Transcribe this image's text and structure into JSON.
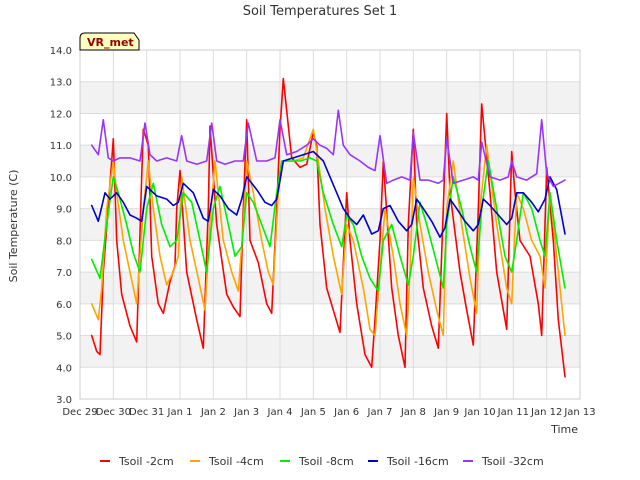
{
  "chart_data": {
    "type": "line",
    "title": "Soil Temperatures Set 1",
    "xlabel": "Time",
    "ylabel": "Soil Temperature (C)",
    "ylim": [
      3.0,
      14.0
    ],
    "xlim": [
      0,
      15
    ],
    "y_ticks": [
      "3.0",
      "4.0",
      "5.0",
      "6.0",
      "7.0",
      "8.0",
      "9.0",
      "10.0",
      "11.0",
      "12.0",
      "13.0",
      "14.0"
    ],
    "x_ticks": [
      {
        "label": "Dec 29",
        "x": 0
      },
      {
        "label": "Dec 30",
        "x": 1
      },
      {
        "label": "Dec 31",
        "x": 2
      },
      {
        "label": "Jan 1",
        "x": 3
      },
      {
        "label": "Jan 2",
        "x": 4
      },
      {
        "label": "Jan 3",
        "x": 5
      },
      {
        "label": "Jan 4",
        "x": 6
      },
      {
        "label": "Jan 5",
        "x": 7
      },
      {
        "label": "Jan 6",
        "x": 8
      },
      {
        "label": "Jan 7",
        "x": 9
      },
      {
        "label": "Jan 8",
        "x": 10
      },
      {
        "label": "Jan 9",
        "x": 11
      },
      {
        "label": "Jan 10",
        "x": 12
      },
      {
        "label": "Jan 11",
        "x": 13
      },
      {
        "label": "Jan 12",
        "x": 14
      },
      {
        "label": "Jan 13",
        "x": 15
      }
    ],
    "grid": true,
    "legend_position": "bottom",
    "annotation": "VR_met",
    "series": [
      {
        "name": "Tsoil -2cm",
        "color": "#ff0000",
        "x": [
          0.35,
          0.5,
          0.6,
          0.7,
          0.95,
          1.0,
          1.1,
          1.25,
          1.5,
          1.7,
          1.85,
          1.9,
          2.05,
          2.15,
          2.35,
          2.5,
          2.7,
          2.85,
          2.9,
          3.0,
          3.2,
          3.5,
          3.7,
          3.85,
          3.9,
          4.1,
          4.4,
          4.6,
          4.8,
          4.9,
          5.0,
          5.1,
          5.35,
          5.6,
          5.75,
          5.9,
          6.0,
          6.1,
          6.35,
          6.6,
          6.8,
          7.0,
          7.1,
          7.2,
          7.4,
          7.6,
          7.8,
          8.0,
          8.1,
          8.3,
          8.55,
          8.75,
          8.85,
          9.0,
          9.1,
          9.35,
          9.55,
          9.75,
          9.85,
          10.0,
          10.1,
          10.3,
          10.55,
          10.75,
          10.9,
          11.0,
          11.1,
          11.4,
          11.6,
          11.8,
          11.95,
          12.05,
          12.3,
          12.5,
          12.8,
          12.95,
          13.05,
          13.2,
          13.5,
          13.75,
          13.85,
          14.0,
          14.2,
          14.35,
          14.55
        ],
        "values": [
          5.0,
          4.5,
          4.4,
          7.0,
          10.5,
          11.2,
          8.0,
          6.3,
          5.3,
          4.8,
          10.0,
          11.5,
          11.0,
          7.5,
          6.0,
          5.7,
          6.7,
          7.2,
          9.0,
          10.2,
          7.0,
          5.5,
          4.6,
          9.0,
          11.6,
          8.5,
          6.3,
          5.9,
          5.6,
          9.0,
          11.8,
          8.0,
          7.3,
          6.0,
          5.7,
          9.0,
          11.5,
          13.1,
          10.6,
          10.3,
          10.4,
          11.4,
          11.0,
          8.5,
          6.5,
          5.8,
          5.1,
          9.5,
          8.0,
          6.0,
          4.4,
          4.0,
          5.5,
          8.0,
          10.5,
          6.5,
          5.0,
          4.0,
          8.5,
          11.5,
          8.5,
          6.5,
          5.3,
          4.6,
          9.0,
          12.0,
          9.5,
          7.0,
          5.8,
          4.7,
          9.0,
          12.3,
          9.5,
          7.0,
          5.2,
          10.8,
          9.5,
          8.0,
          7.5,
          6.0,
          5.0,
          10.3,
          8.0,
          5.5,
          3.7
        ]
      },
      {
        "name": "Tsoil -4cm",
        "color": "#ffa500",
        "x": [
          0.35,
          0.55,
          0.65,
          0.8,
          1.0,
          1.1,
          1.3,
          1.5,
          1.7,
          1.9,
          2.05,
          2.2,
          2.4,
          2.6,
          2.8,
          2.95,
          3.05,
          3.3,
          3.55,
          3.75,
          3.9,
          4.05,
          4.3,
          4.55,
          4.75,
          4.9,
          5.0,
          5.2,
          5.45,
          5.65,
          5.8,
          5.95,
          6.1,
          6.4,
          6.7,
          7.0,
          7.15,
          7.35,
          7.6,
          7.85,
          8.0,
          8.2,
          8.5,
          8.7,
          8.85,
          9.0,
          9.15,
          9.4,
          9.6,
          9.8,
          9.9,
          10.0,
          10.2,
          10.45,
          10.7,
          10.9,
          11.0,
          11.2,
          11.45,
          11.7,
          11.9,
          12.0,
          12.2,
          12.5,
          12.8,
          12.95,
          13.1,
          13.3,
          13.55,
          13.8,
          13.95,
          14.1,
          14.3,
          14.55
        ],
        "values": [
          6.0,
          5.5,
          6.5,
          9.0,
          10.5,
          9.5,
          8.0,
          7.0,
          6.0,
          9.0,
          10.5,
          9.0,
          7.5,
          6.6,
          7.0,
          7.5,
          10.0,
          8.0,
          6.8,
          5.8,
          8.5,
          10.5,
          8.0,
          7.0,
          6.4,
          8.5,
          10.5,
          9.5,
          8.0,
          7.0,
          6.6,
          9.5,
          10.5,
          10.5,
          10.6,
          11.5,
          10.5,
          9.0,
          7.5,
          6.3,
          8.5,
          8.0,
          6.5,
          5.2,
          5.0,
          7.0,
          9.0,
          7.5,
          6.0,
          5.0,
          7.0,
          10.0,
          8.5,
          7.0,
          5.8,
          5.0,
          9.0,
          10.5,
          8.5,
          6.8,
          5.7,
          9.0,
          11.0,
          8.5,
          6.5,
          6.0,
          9.5,
          9.0,
          8.0,
          7.5,
          6.5,
          9.5,
          7.5,
          5.0
        ]
      },
      {
        "name": "Tsoil -8cm",
        "color": "#00ee00",
        "x": [
          0.35,
          0.6,
          0.8,
          1.0,
          1.15,
          1.4,
          1.6,
          1.8,
          2.0,
          2.2,
          2.45,
          2.7,
          2.9,
          3.1,
          3.35,
          3.6,
          3.8,
          4.0,
          4.2,
          4.45,
          4.65,
          4.85,
          5.0,
          5.2,
          5.45,
          5.7,
          5.9,
          6.05,
          6.3,
          6.6,
          6.9,
          7.1,
          7.3,
          7.6,
          7.85,
          8.0,
          8.2,
          8.45,
          8.7,
          8.95,
          9.1,
          9.35,
          9.6,
          9.85,
          10.0,
          10.2,
          10.4,
          10.65,
          10.9,
          11.0,
          11.2,
          11.45,
          11.7,
          11.9,
          12.05,
          12.25,
          12.5,
          12.75,
          12.95,
          13.1,
          13.3,
          13.55,
          13.8,
          13.95,
          14.1,
          14.3,
          14.55
        ],
        "values": [
          7.4,
          6.8,
          8.5,
          10.0,
          9.5,
          8.5,
          7.6,
          7.0,
          9.0,
          9.8,
          8.5,
          7.8,
          8.0,
          9.5,
          9.2,
          8.0,
          7.0,
          9.0,
          9.7,
          8.5,
          7.5,
          7.8,
          9.5,
          9.2,
          8.5,
          7.8,
          9.5,
          10.5,
          10.5,
          10.5,
          10.6,
          10.5,
          9.5,
          8.5,
          7.8,
          8.8,
          8.5,
          7.5,
          6.8,
          6.4,
          8.0,
          8.5,
          7.5,
          6.6,
          7.5,
          9.2,
          8.5,
          7.5,
          6.5,
          8.5,
          10.0,
          9.0,
          7.8,
          7.0,
          9.0,
          10.5,
          9.0,
          7.5,
          7.0,
          8.0,
          9.5,
          9.0,
          8.0,
          7.5,
          9.5,
          8.0,
          6.5
        ]
      },
      {
        "name": "Tsoil -16cm",
        "color": "#0000cc",
        "x": [
          0.35,
          0.55,
          0.75,
          0.9,
          1.1,
          1.3,
          1.5,
          1.7,
          1.85,
          2.0,
          2.3,
          2.6,
          2.8,
          2.95,
          3.1,
          3.4,
          3.7,
          3.85,
          4.0,
          4.2,
          4.45,
          4.7,
          4.85,
          5.0,
          5.3,
          5.55,
          5.75,
          5.9,
          6.1,
          6.4,
          6.7,
          7.0,
          7.3,
          7.5,
          7.7,
          7.9,
          8.1,
          8.3,
          8.5,
          8.75,
          8.95,
          9.1,
          9.3,
          9.55,
          9.8,
          9.95,
          10.1,
          10.3,
          10.55,
          10.8,
          10.95,
          11.1,
          11.3,
          11.55,
          11.8,
          11.95,
          12.1,
          12.3,
          12.55,
          12.8,
          12.95,
          13.1,
          13.3,
          13.55,
          13.75,
          13.95,
          14.1,
          14.3,
          14.55
        ],
        "values": [
          9.1,
          8.6,
          9.5,
          9.3,
          9.5,
          9.2,
          8.8,
          8.7,
          8.6,
          9.7,
          9.4,
          9.3,
          9.1,
          9.2,
          9.8,
          9.5,
          8.7,
          8.6,
          9.6,
          9.4,
          9.0,
          8.8,
          9.3,
          10.0,
          9.6,
          9.2,
          9.1,
          9.3,
          10.5,
          10.6,
          10.7,
          10.8,
          10.5,
          10.0,
          9.5,
          9.0,
          8.7,
          8.5,
          8.8,
          8.2,
          8.3,
          9.0,
          9.1,
          8.6,
          8.3,
          8.5,
          9.3,
          9.0,
          8.6,
          8.1,
          8.4,
          9.3,
          9.0,
          8.6,
          8.3,
          8.5,
          9.3,
          9.1,
          8.8,
          8.5,
          8.7,
          9.5,
          9.5,
          9.2,
          8.9,
          9.3,
          10.0,
          9.6,
          8.2
        ]
      },
      {
        "name": "Tsoil -32cm",
        "color": "#9933ff",
        "x": [
          0.35,
          0.55,
          0.7,
          0.85,
          1.0,
          1.2,
          1.5,
          1.8,
          1.95,
          2.1,
          2.3,
          2.6,
          2.9,
          3.05,
          3.2,
          3.5,
          3.8,
          3.95,
          4.1,
          4.35,
          4.65,
          4.9,
          5.05,
          5.3,
          5.6,
          5.85,
          6.0,
          6.2,
          6.5,
          6.8,
          7.0,
          7.2,
          7.4,
          7.6,
          7.75,
          7.9,
          8.1,
          8.4,
          8.65,
          8.85,
          9.0,
          9.2,
          9.4,
          9.65,
          9.9,
          10.0,
          10.2,
          10.45,
          10.75,
          10.9,
          11.0,
          11.2,
          11.5,
          11.8,
          11.95,
          12.05,
          12.3,
          12.6,
          12.85,
          12.95,
          13.1,
          13.4,
          13.7,
          13.85,
          14.0,
          14.2,
          14.55
        ],
        "values": [
          11.0,
          10.7,
          11.8,
          10.6,
          10.5,
          10.6,
          10.6,
          10.5,
          11.7,
          10.7,
          10.5,
          10.6,
          10.5,
          11.3,
          10.5,
          10.4,
          10.5,
          11.7,
          10.5,
          10.4,
          10.5,
          10.5,
          11.7,
          10.5,
          10.5,
          10.6,
          11.8,
          10.7,
          10.8,
          11.0,
          11.2,
          11.0,
          10.9,
          10.7,
          12.1,
          11.0,
          10.7,
          10.5,
          10.3,
          10.2,
          11.3,
          9.8,
          9.9,
          10.0,
          9.9,
          11.4,
          9.9,
          9.9,
          9.8,
          9.9,
          11.2,
          9.8,
          9.9,
          10.0,
          9.9,
          11.1,
          10.0,
          9.9,
          10.0,
          10.5,
          10.0,
          9.9,
          10.1,
          11.8,
          10.1,
          9.7,
          9.9
        ]
      }
    ]
  }
}
